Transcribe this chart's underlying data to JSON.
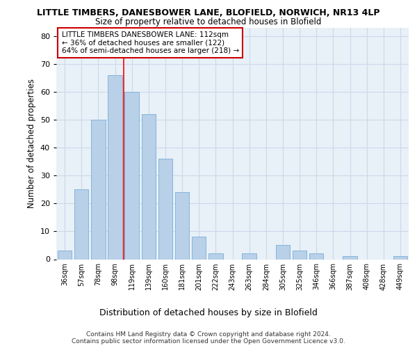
{
  "title": "LITTLE TIMBERS, DANESBOWER LANE, BLOFIELD, NORWICH, NR13 4LP",
  "subtitle": "Size of property relative to detached houses in Blofield",
  "xlabel": "Distribution of detached houses by size in Blofield",
  "ylabel": "Number of detached properties",
  "categories": [
    "36sqm",
    "57sqm",
    "78sqm",
    "98sqm",
    "119sqm",
    "139sqm",
    "160sqm",
    "181sqm",
    "201sqm",
    "222sqm",
    "243sqm",
    "263sqm",
    "284sqm",
    "305sqm",
    "325sqm",
    "346sqm",
    "366sqm",
    "387sqm",
    "408sqm",
    "428sqm",
    "449sqm"
  ],
  "values": [
    3,
    25,
    50,
    66,
    60,
    52,
    36,
    24,
    8,
    2,
    0,
    2,
    0,
    5,
    3,
    2,
    0,
    1,
    0,
    0,
    1
  ],
  "bar_color": "#b8d0e8",
  "bar_edge_color": "#7aafd4",
  "grid_color": "#ccd9e8",
  "background_color": "#e8f0f8",
  "red_line_index": 4,
  "annotation_line1": "LITTLE TIMBERS DANESBOWER LANE: 112sqm",
  "annotation_line2": "← 36% of detached houses are smaller (122)",
  "annotation_line3": "64% of semi-detached houses are larger (218) →",
  "annotation_box_facecolor": "#ffffff",
  "annotation_box_edgecolor": "#cc0000",
  "ylim": [
    0,
    83
  ],
  "yticks": [
    0,
    10,
    20,
    30,
    40,
    50,
    60,
    70,
    80
  ],
  "footer1": "Contains HM Land Registry data © Crown copyright and database right 2024.",
  "footer2": "Contains public sector information licensed under the Open Government Licence v3.0."
}
